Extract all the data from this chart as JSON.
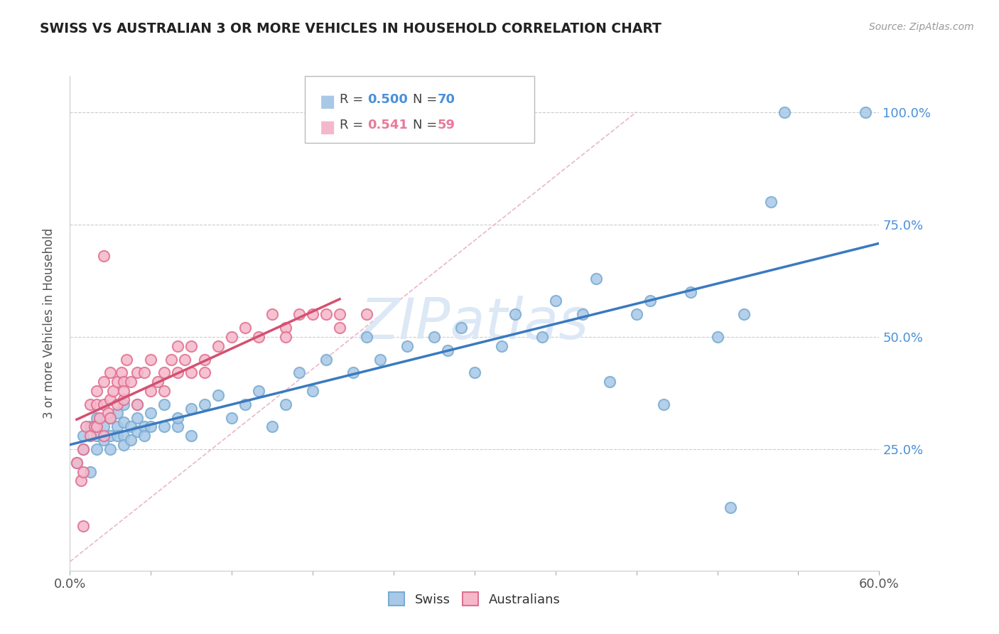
{
  "title": "SWISS VS AUSTRALIAN 3 OR MORE VEHICLES IN HOUSEHOLD CORRELATION CHART",
  "source_text": "Source: ZipAtlas.com",
  "ylabel": "3 or more Vehicles in Household",
  "xlim": [
    0.0,
    0.6
  ],
  "ylim": [
    -0.02,
    1.08
  ],
  "swiss_color": "#a8c8e8",
  "swiss_edge_color": "#7aacd0",
  "aus_color": "#f5b8cb",
  "aus_edge_color": "#e07090",
  "swiss_line_color": "#3a7abf",
  "aus_line_color": "#d45070",
  "diagonal_color": "#e8b0c0",
  "watermark": "ZIPatlas",
  "watermark_color": "#dce8f5",
  "swiss_x": [
    0.005,
    0.01,
    0.01,
    0.015,
    0.015,
    0.02,
    0.02,
    0.02,
    0.025,
    0.025,
    0.03,
    0.03,
    0.03,
    0.035,
    0.035,
    0.035,
    0.04,
    0.04,
    0.04,
    0.04,
    0.045,
    0.045,
    0.05,
    0.05,
    0.05,
    0.055,
    0.055,
    0.06,
    0.06,
    0.07,
    0.07,
    0.08,
    0.08,
    0.09,
    0.09,
    0.1,
    0.11,
    0.12,
    0.13,
    0.14,
    0.15,
    0.16,
    0.17,
    0.18,
    0.19,
    0.21,
    0.22,
    0.23,
    0.25,
    0.27,
    0.28,
    0.29,
    0.3,
    0.32,
    0.33,
    0.35,
    0.36,
    0.38,
    0.39,
    0.4,
    0.42,
    0.43,
    0.44,
    0.46,
    0.48,
    0.49,
    0.5,
    0.52,
    0.53,
    0.59
  ],
  "swiss_y": [
    0.22,
    0.25,
    0.28,
    0.3,
    0.2,
    0.28,
    0.32,
    0.25,
    0.3,
    0.27,
    0.32,
    0.28,
    0.25,
    0.3,
    0.28,
    0.33,
    0.28,
    0.31,
    0.26,
    0.35,
    0.3,
    0.27,
    0.32,
    0.29,
    0.35,
    0.3,
    0.28,
    0.33,
    0.3,
    0.3,
    0.35,
    0.3,
    0.32,
    0.34,
    0.28,
    0.35,
    0.37,
    0.32,
    0.35,
    0.38,
    0.3,
    0.35,
    0.42,
    0.38,
    0.45,
    0.42,
    0.5,
    0.45,
    0.48,
    0.5,
    0.47,
    0.52,
    0.42,
    0.48,
    0.55,
    0.5,
    0.58,
    0.55,
    0.63,
    0.4,
    0.55,
    0.58,
    0.35,
    0.6,
    0.5,
    0.12,
    0.55,
    0.8,
    1.0,
    1.0
  ],
  "aus_x": [
    0.005,
    0.008,
    0.01,
    0.01,
    0.01,
    0.012,
    0.015,
    0.015,
    0.018,
    0.02,
    0.02,
    0.02,
    0.022,
    0.025,
    0.025,
    0.025,
    0.028,
    0.03,
    0.03,
    0.03,
    0.032,
    0.035,
    0.035,
    0.038,
    0.04,
    0.04,
    0.04,
    0.042,
    0.045,
    0.05,
    0.05,
    0.055,
    0.06,
    0.06,
    0.065,
    0.07,
    0.07,
    0.075,
    0.08,
    0.08,
    0.085,
    0.09,
    0.09,
    0.1,
    0.1,
    0.11,
    0.12,
    0.13,
    0.14,
    0.15,
    0.16,
    0.16,
    0.17,
    0.18,
    0.19,
    0.2,
    0.2,
    0.22,
    0.025
  ],
  "aus_y": [
    0.22,
    0.18,
    0.25,
    0.2,
    0.08,
    0.3,
    0.28,
    0.35,
    0.3,
    0.35,
    0.3,
    0.38,
    0.32,
    0.35,
    0.4,
    0.28,
    0.33,
    0.42,
    0.36,
    0.32,
    0.38,
    0.4,
    0.35,
    0.42,
    0.36,
    0.4,
    0.38,
    0.45,
    0.4,
    0.35,
    0.42,
    0.42,
    0.38,
    0.45,
    0.4,
    0.42,
    0.38,
    0.45,
    0.42,
    0.48,
    0.45,
    0.42,
    0.48,
    0.45,
    0.42,
    0.48,
    0.5,
    0.52,
    0.5,
    0.55,
    0.52,
    0.5,
    0.55,
    0.55,
    0.55,
    0.55,
    0.52,
    0.55,
    0.68
  ]
}
